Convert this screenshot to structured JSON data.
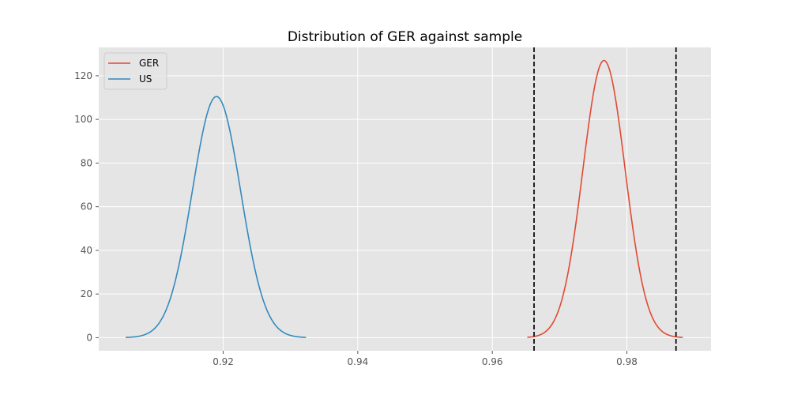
{
  "chart_data": {
    "type": "line",
    "title": "Distribution of GER against sample",
    "xlabel": "",
    "ylabel": "",
    "xlim": [
      0.9015,
      0.9925
    ],
    "ylim": [
      -6,
      133
    ],
    "xticks": [
      0.92,
      0.94,
      0.96,
      0.98
    ],
    "xtick_labels": [
      "0.92",
      "0.94",
      "0.96",
      "0.98"
    ],
    "yticks": [
      0,
      20,
      40,
      60,
      80,
      100,
      120
    ],
    "ytick_labels": [
      "0",
      "20",
      "40",
      "60",
      "80",
      "100",
      "120"
    ],
    "grid": true,
    "legend_position": "top-left",
    "series": [
      {
        "name": "GER",
        "color": "#E24A33",
        "distribution": "normal",
        "mean": 0.9766,
        "std": 0.00314,
        "x_range": [
          0.9652,
          0.9883
        ],
        "peak": 127
      },
      {
        "name": "US",
        "color": "#348ABD",
        "distribution": "normal",
        "mean": 0.919,
        "std": 0.0036,
        "x_range": [
          0.9055,
          0.9323
        ],
        "peak": 110.5
      }
    ],
    "vlines": [
      {
        "x": 0.9662,
        "style": "dashed",
        "color": "#000000"
      },
      {
        "x": 0.9873,
        "style": "dashed",
        "color": "#000000"
      }
    ]
  }
}
